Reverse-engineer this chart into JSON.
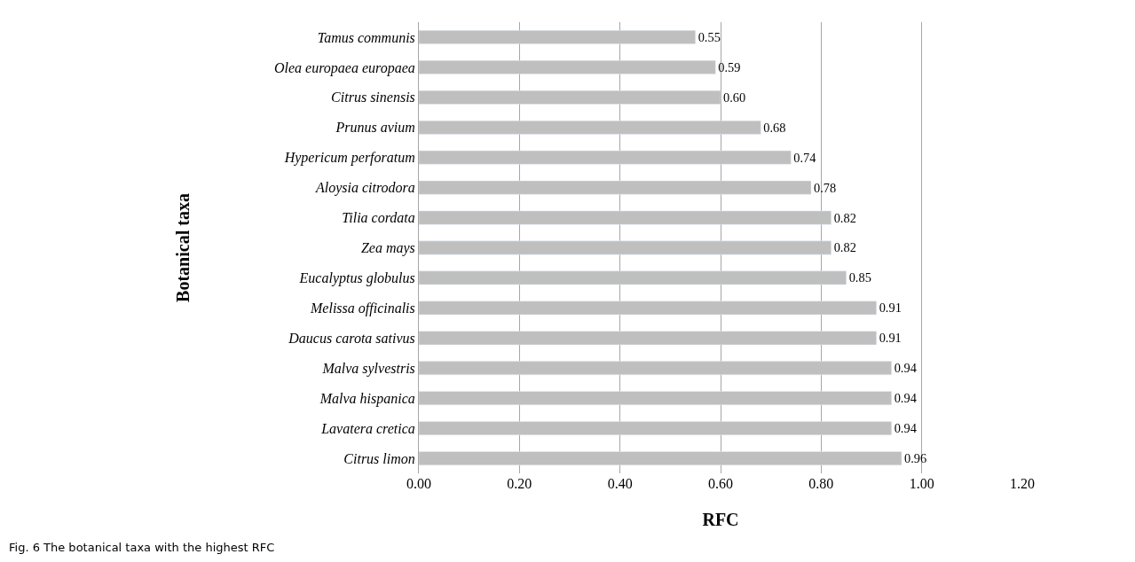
{
  "chart_data": {
    "type": "bar",
    "orientation": "horizontal",
    "categories": [
      "Tamus communis",
      "Olea europaea europaea",
      "Citrus sinensis",
      "Prunus avium",
      "Hypericum perforatum",
      "Aloysia citrodora",
      "Tilia cordata",
      "Zea mays",
      "Eucalyptus globulus",
      "Melissa officinalis",
      "Daucus carota sativus",
      "Malva sylvestris",
      "Malva hispanica",
      "Lavatera cretica",
      "Citrus limon"
    ],
    "values": [
      0.55,
      0.59,
      0.6,
      0.68,
      0.74,
      0.78,
      0.82,
      0.82,
      0.85,
      0.91,
      0.91,
      0.94,
      0.94,
      0.94,
      0.96
    ],
    "value_labels": [
      "0.55",
      "0.59",
      "0.60",
      "0.68",
      "0.74",
      "0.78",
      "0.82",
      "0.82",
      "0.85",
      "0.91",
      "0.91",
      "0.94",
      "0.94",
      "0.94",
      "0.96"
    ],
    "color": "#bfbfbf",
    "xlim": [
      0,
      1.2
    ],
    "xticks": [
      {
        "value": 0,
        "label": "0.00"
      },
      {
        "value": 0.2,
        "label": "0.20"
      },
      {
        "value": 0.4,
        "label": "0.40"
      },
      {
        "value": 0.6,
        "label": "0.60"
      },
      {
        "value": 0.8,
        "label": "0.80"
      },
      {
        "value": 1.0,
        "label": "1.00"
      },
      {
        "value": 1.2,
        "label": "1.20"
      }
    ],
    "xlabel": "RFC",
    "ylabel": "Botanical taxa",
    "grid": "x",
    "annotations": [
      "Fig. 6 The botanical taxa with the highest RFC"
    ]
  }
}
